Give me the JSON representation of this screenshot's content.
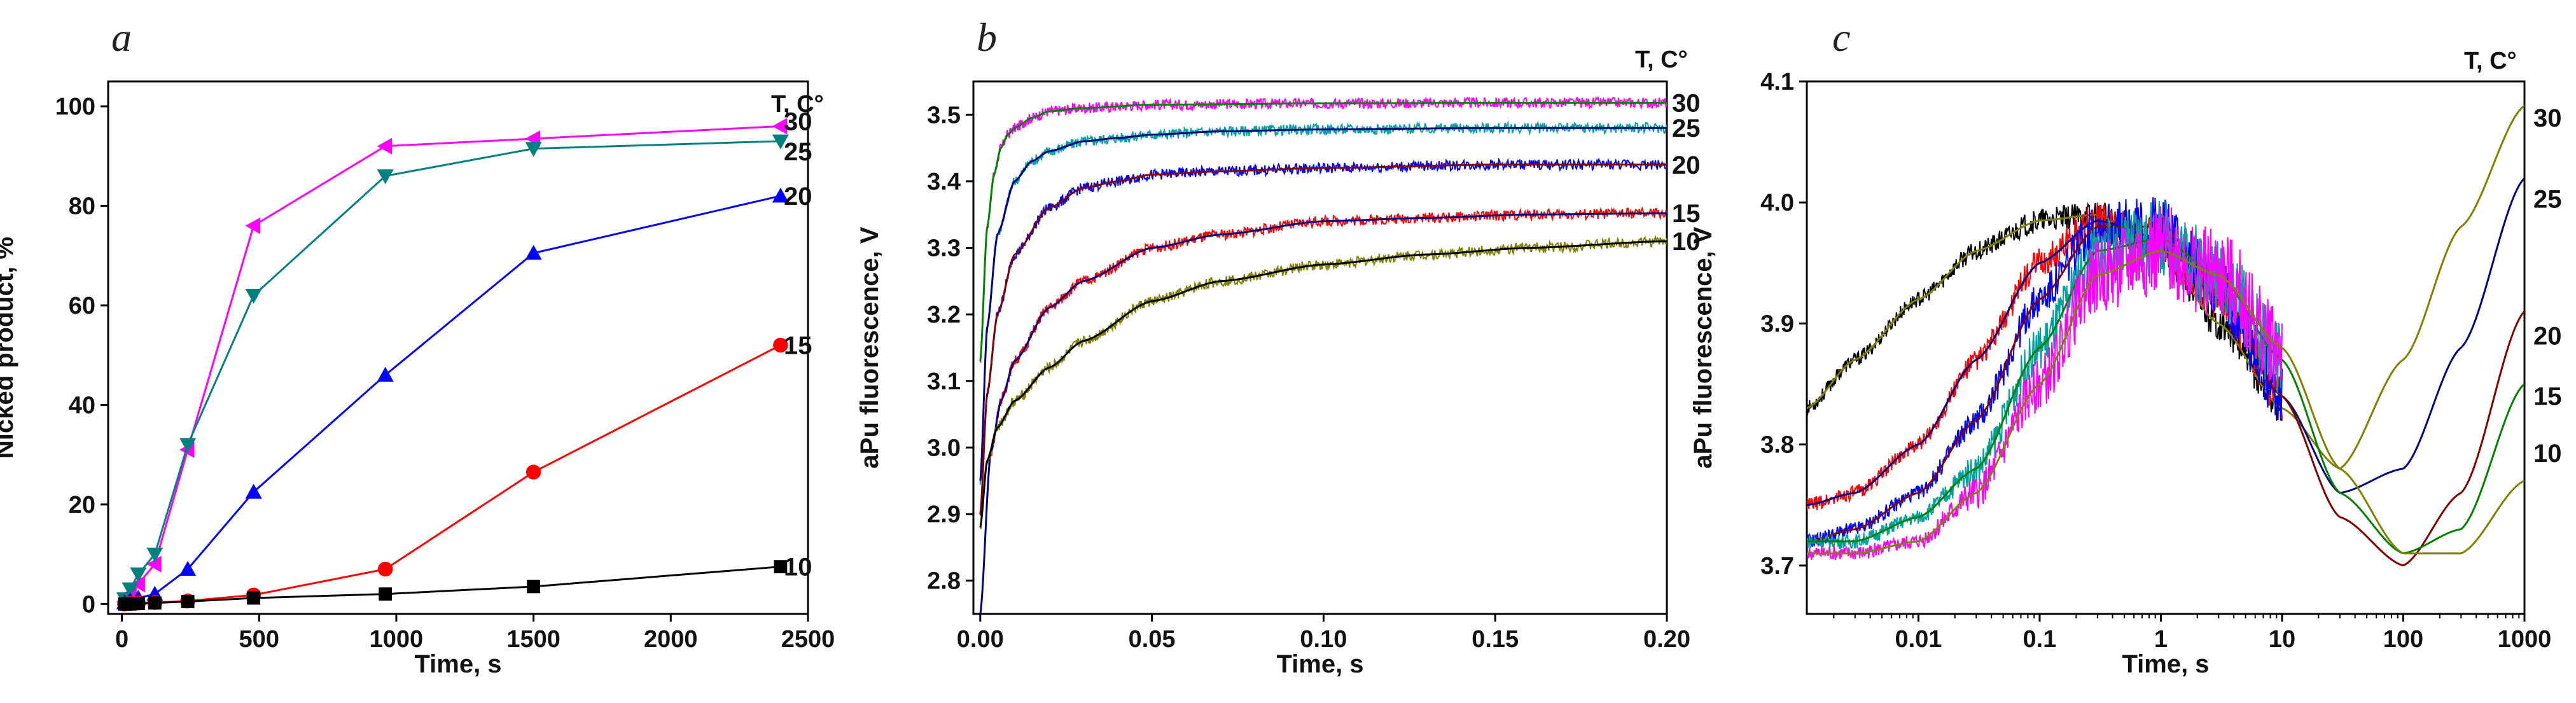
{
  "chart_data": [
    {
      "type": "line",
      "panel_label": "a",
      "xlabel": "Time, s",
      "ylabel": "Nicked product, %",
      "xlim": [
        -50,
        2500
      ],
      "ylim": [
        -2,
        105
      ],
      "x_ticks": [
        0,
        500,
        1000,
        1500,
        2000,
        2500
      ],
      "y_ticks": [
        0,
        20,
        40,
        60,
        80,
        100
      ],
      "legend_title": "T, C°",
      "series": [
        {
          "name": "30",
          "color": "#ff00ff",
          "marker": "triangle-left",
          "x": [
            10,
            30,
            60,
            120,
            240,
            480,
            960,
            1500,
            2400
          ],
          "y": [
            0.5,
            2,
            4,
            8,
            31,
            76,
            92,
            93.5,
            96
          ]
        },
        {
          "name": "25",
          "color": "#008080",
          "marker": "triangle-down",
          "x": [
            10,
            30,
            60,
            120,
            240,
            480,
            960,
            1500,
            2400
          ],
          "y": [
            1,
            3,
            6,
            10,
            32,
            62,
            86,
            91.5,
            93
          ]
        },
        {
          "name": "20",
          "color": "#0000ff",
          "marker": "triangle-up",
          "x": [
            10,
            30,
            60,
            120,
            240,
            480,
            960,
            1500,
            2400
          ],
          "y": [
            0.3,
            0.7,
            1.2,
            2,
            7,
            22.5,
            46,
            70.5,
            82
          ]
        },
        {
          "name": "15",
          "color": "#ff0000",
          "marker": "circle",
          "x": [
            10,
            30,
            60,
            120,
            240,
            480,
            960,
            1500,
            2400
          ],
          "y": [
            0,
            0.1,
            0.2,
            0.3,
            0.6,
            1.8,
            7,
            26.5,
            52
          ]
        },
        {
          "name": "10",
          "color": "#000000",
          "marker": "square",
          "x": [
            10,
            30,
            60,
            120,
            240,
            480,
            960,
            1500,
            2400
          ],
          "y": [
            0,
            0,
            0.1,
            0.2,
            0.5,
            1.2,
            2,
            3.5,
            7.5
          ]
        }
      ]
    },
    {
      "type": "line",
      "panel_label": "b",
      "xlabel": "Time, s",
      "ylabel": "aPu fluorescence, V",
      "xlim": [
        -0.002,
        0.2
      ],
      "ylim": [
        2.75,
        3.55
      ],
      "x_ticks": [
        0.0,
        0.05,
        0.1,
        0.15,
        0.2
      ],
      "x_tick_labels": [
        "0.00",
        "0.05",
        "0.10",
        "0.15",
        "0.20"
      ],
      "y_ticks": [
        2.8,
        2.9,
        3.0,
        3.1,
        3.2,
        3.3,
        3.4,
        3.5
      ],
      "y_tick_labels": [
        "2.8",
        "2.9",
        "3.0",
        "3.1",
        "3.2",
        "3.3",
        "3.4",
        "3.5"
      ],
      "legend_title": "T, C°",
      "series": [
        {
          "name": "30",
          "color": "#ff00ff",
          "fit_color": "#008000",
          "x": [
            0,
            0.002,
            0.004,
            0.006,
            0.008,
            0.01,
            0.015,
            0.02,
            0.03,
            0.05,
            0.1,
            0.15,
            0.2
          ],
          "y": [
            3.13,
            3.33,
            3.41,
            3.45,
            3.47,
            3.48,
            3.495,
            3.505,
            3.51,
            3.515,
            3.517,
            3.518,
            3.518
          ]
        },
        {
          "name": "25",
          "color": "#00a0a0",
          "fit_color": "#000080",
          "x": [
            0,
            0.002,
            0.005,
            0.01,
            0.015,
            0.02,
            0.03,
            0.04,
            0.05,
            0.07,
            0.1,
            0.15,
            0.2
          ],
          "y": [
            2.95,
            3.18,
            3.32,
            3.4,
            3.43,
            3.445,
            3.46,
            3.465,
            3.47,
            3.475,
            3.478,
            3.48,
            3.48
          ]
        },
        {
          "name": "20",
          "color": "#0000ff",
          "fit_color": "#800000",
          "x": [
            0,
            0.002,
            0.005,
            0.01,
            0.02,
            0.03,
            0.04,
            0.05,
            0.07,
            0.1,
            0.15,
            0.2
          ],
          "y": [
            2.9,
            3.08,
            3.2,
            3.29,
            3.36,
            3.39,
            3.4,
            3.41,
            3.415,
            3.42,
            3.425,
            3.425
          ]
        },
        {
          "name": "15",
          "color": "#ff0000",
          "fit_color": "#000080",
          "x": [
            0,
            0.003,
            0.006,
            0.01,
            0.02,
            0.03,
            0.05,
            0.07,
            0.1,
            0.13,
            0.16,
            0.2
          ],
          "y": [
            2.75,
            2.99,
            3.07,
            3.13,
            3.21,
            3.25,
            3.3,
            3.32,
            3.34,
            3.345,
            3.35,
            3.352
          ]
        },
        {
          "name": "10",
          "color": "#808000",
          "fit_color": "#000000",
          "x": [
            0,
            0.002,
            0.005,
            0.01,
            0.02,
            0.03,
            0.05,
            0.07,
            0.1,
            0.13,
            0.16,
            0.2
          ],
          "y": [
            2.88,
            2.98,
            3.03,
            3.07,
            3.12,
            3.16,
            3.22,
            3.25,
            3.275,
            3.29,
            3.3,
            3.31
          ]
        }
      ]
    },
    {
      "type": "line",
      "panel_label": "c",
      "xlabel": "Time, s",
      "ylabel": "aPu fluorescence, V",
      "xscale": "log",
      "xlim": [
        0.0012,
        1000
      ],
      "ylim": [
        3.66,
        4.1
      ],
      "x_ticks": [
        0.01,
        0.1,
        1,
        10,
        100,
        1000
      ],
      "x_tick_labels": [
        "0.01",
        "0.1",
        "1",
        "10",
        "100",
        "1000"
      ],
      "y_ticks": [
        3.7,
        3.8,
        3.9,
        4.0,
        4.1
      ],
      "y_tick_labels": [
        "3.7",
        "3.8",
        "3.9",
        "4.0",
        "4.1"
      ],
      "legend_title": "T, C°",
      "series": [
        {
          "name": "30",
          "color": "#000000",
          "fit_color": "#808000",
          "x": [
            0.0012,
            0.003,
            0.01,
            0.03,
            0.1,
            0.3,
            1,
            3,
            10,
            30,
            100,
            300,
            1000
          ],
          "y": [
            3.83,
            3.87,
            3.92,
            3.96,
            3.985,
            3.99,
            3.96,
            3.9,
            3.83,
            3.78,
            3.87,
            3.98,
            4.08
          ],
          "data_xmax": 10
        },
        {
          "name": "25",
          "color": "#ff0000",
          "fit_color": "#000080",
          "x": [
            0.0012,
            0.003,
            0.01,
            0.03,
            0.1,
            0.3,
            1,
            3,
            10,
            30,
            100,
            300,
            1000
          ],
          "y": [
            3.75,
            3.76,
            3.8,
            3.87,
            3.95,
            3.985,
            3.97,
            3.92,
            3.84,
            3.76,
            3.78,
            3.88,
            4.02
          ],
          "data_xmax": 10
        },
        {
          "name": "20",
          "color": "#0000ff",
          "fit_color": "#800000",
          "x": [
            0.0012,
            0.003,
            0.01,
            0.03,
            0.1,
            0.3,
            1,
            3,
            10,
            30,
            100,
            300,
            1000
          ],
          "y": [
            3.72,
            3.73,
            3.76,
            3.82,
            3.92,
            3.98,
            3.98,
            3.93,
            3.84,
            3.74,
            3.7,
            3.76,
            3.91
          ],
          "data_xmax": 10
        },
        {
          "name": "15",
          "color": "#00a0a0",
          "fit_color": "#008000",
          "x": [
            0.0012,
            0.003,
            0.01,
            0.03,
            0.1,
            0.3,
            1,
            3,
            10,
            30,
            100,
            300,
            1000
          ],
          "y": [
            3.72,
            3.72,
            3.74,
            3.78,
            3.88,
            3.96,
            3.97,
            3.94,
            3.87,
            3.76,
            3.71,
            3.73,
            3.85
          ],
          "data_xmax": 10
        },
        {
          "name": "10",
          "color": "#ff00ff",
          "fit_color": "#808000",
          "x": [
            0.0012,
            0.003,
            0.01,
            0.03,
            0.1,
            0.3,
            1,
            3,
            10,
            30,
            100,
            300,
            1000
          ],
          "y": [
            3.71,
            3.71,
            3.72,
            3.76,
            3.85,
            3.94,
            3.96,
            3.94,
            3.88,
            3.78,
            3.71,
            3.71,
            3.77
          ],
          "data_xmax": 10
        }
      ],
      "right_labels": [
        {
          "text": "30",
          "y": 4.07
        },
        {
          "text": "25",
          "y": 4.003
        },
        {
          "text": "20",
          "y": 3.89
        },
        {
          "text": "15",
          "y": 3.84
        },
        {
          "text": "10",
          "y": 3.793
        }
      ]
    }
  ]
}
